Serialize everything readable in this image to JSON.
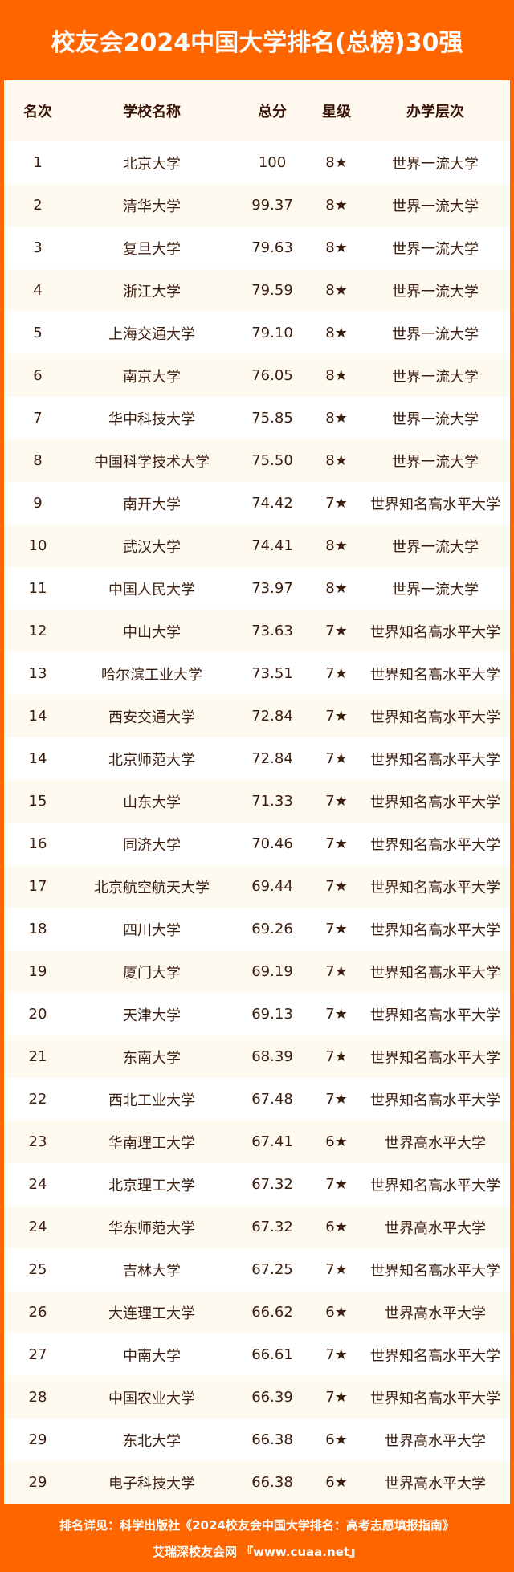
{
  "title": "校友会2024中国大学排名(总榜)30强",
  "headers": [
    "名次",
    "学校名称",
    "总分",
    "星级",
    "办学层次"
  ],
  "rows": [
    [
      "1",
      "北京大学",
      "100",
      "8★",
      "世界一流大学"
    ],
    [
      "2",
      "清华大学",
      "99.37",
      "8★",
      "世界一流大学"
    ],
    [
      "3",
      "复旦大学",
      "79.63",
      "8★",
      "世界一流大学"
    ],
    [
      "4",
      "浙江大学",
      "79.59",
      "8★",
      "世界一流大学"
    ],
    [
      "5",
      "上海交通大学",
      "79.10",
      "8★",
      "世界一流大学"
    ],
    [
      "6",
      "南京大学",
      "76.05",
      "8★",
      "世界一流大学"
    ],
    [
      "7",
      "华中科技大学",
      "75.85",
      "8★",
      "世界一流大学"
    ],
    [
      "8",
      "中国科学技术大学",
      "75.50",
      "8★",
      "世界一流大学"
    ],
    [
      "9",
      "南开大学",
      "74.42",
      "7★",
      "世界知名高水平大学"
    ],
    [
      "10",
      "武汉大学",
      "74.41",
      "8★",
      "世界一流大学"
    ],
    [
      "11",
      "中国人民大学",
      "73.97",
      "8★",
      "世界一流大学"
    ],
    [
      "12",
      "中山大学",
      "73.63",
      "7★",
      "世界知名高水平大学"
    ],
    [
      "13",
      "哈尔滨工业大学",
      "73.51",
      "7★",
      "世界知名高水平大学"
    ],
    [
      "14",
      "西安交通大学",
      "72.84",
      "7★",
      "世界知名高水平大学"
    ],
    [
      "14",
      "北京师范大学",
      "72.84",
      "7★",
      "世界知名高水平大学"
    ],
    [
      "15",
      "山东大学",
      "71.33",
      "7★",
      "世界知名高水平大学"
    ],
    [
      "16",
      "同济大学",
      "70.46",
      "7★",
      "世界知名高水平大学"
    ],
    [
      "17",
      "北京航空航天大学",
      "69.44",
      "7★",
      "世界知名高水平大学"
    ],
    [
      "18",
      "四川大学",
      "69.26",
      "7★",
      "世界知名高水平大学"
    ],
    [
      "19",
      "厦门大学",
      "69.19",
      "7★",
      "世界知名高水平大学"
    ],
    [
      "20",
      "天津大学",
      "69.13",
      "7★",
      "世界知名高水平大学"
    ],
    [
      "21",
      "东南大学",
      "68.39",
      "7★",
      "世界知名高水平大学"
    ],
    [
      "22",
      "西北工业大学",
      "67.48",
      "7★",
      "世界知名高水平大学"
    ],
    [
      "23",
      "华南理工大学",
      "67.41",
      "6★",
      "世界高水平大学"
    ],
    [
      "24",
      "北京理工大学",
      "67.32",
      "7★",
      "世界知名高水平大学"
    ],
    [
      "24",
      "华东师范大学",
      "67.32",
      "6★",
      "世界高水平大学"
    ],
    [
      "25",
      "吉林大学",
      "67.25",
      "7★",
      "世界知名高水平大学"
    ],
    [
      "26",
      "大连理工大学",
      "66.62",
      "6★",
      "世界高水平大学"
    ],
    [
      "27",
      "中南大学",
      "66.61",
      "7★",
      "世界知名高水平大学"
    ],
    [
      "28",
      "中国农业大学",
      "66.39",
      "7★",
      "世界知名高水平大学"
    ],
    [
      "29",
      "东北大学",
      "66.38",
      "6★",
      "世界高水平大学"
    ],
    [
      "29",
      "电子科技大学",
      "66.38",
      "6★",
      "世界高水平大学"
    ]
  ],
  "footer": {
    "line1": "排名详见：科学出版社《2024校友会中国大学排名：高考志愿填报指南》",
    "line2": "艾瑞深校友会网 『www.cuaa.net』"
  },
  "colors": {
    "brand": "#ff6600",
    "text": "#3b1d0e",
    "alt_row": "#fffaf0"
  }
}
